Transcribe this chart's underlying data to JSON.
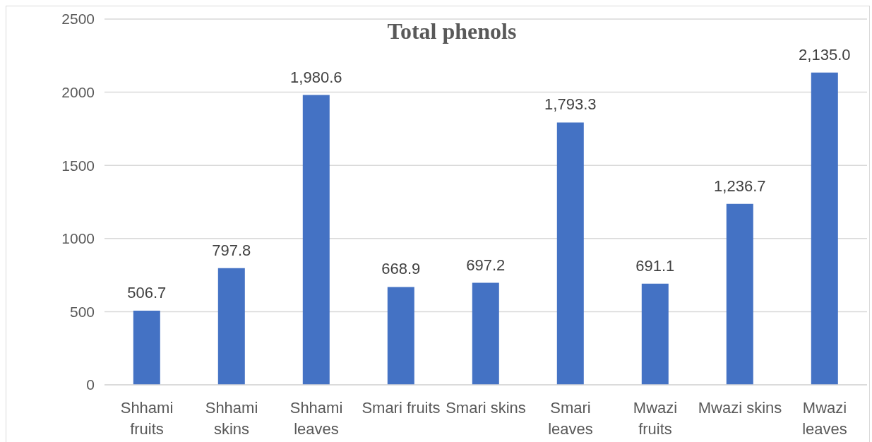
{
  "chart_data": {
    "type": "bar",
    "title": "Total phenols",
    "categories": [
      "Shhami\nfruits",
      "Shhami\nskins",
      "Shhami\nleaves",
      "Smari fruits",
      "Smari skins",
      "Smari\nleaves",
      "Mwazi\nfruits",
      "Mwazi skins",
      "Mwazi\nleaves"
    ],
    "values": [
      506.7,
      797.8,
      1980.6,
      668.9,
      697.2,
      1793.3,
      691.1,
      1236.7,
      2135.0
    ],
    "value_labels": [
      "506.7",
      "797.8",
      "1,980.6",
      "668.9",
      "697.2",
      "1,793.3",
      "691.1",
      "1,236.7",
      "2,135.0"
    ],
    "color": "#4472c4",
    "ylim": [
      0,
      2500
    ],
    "yticks": [
      0,
      500,
      1000,
      1500,
      2000,
      2500
    ],
    "grid": "y"
  }
}
